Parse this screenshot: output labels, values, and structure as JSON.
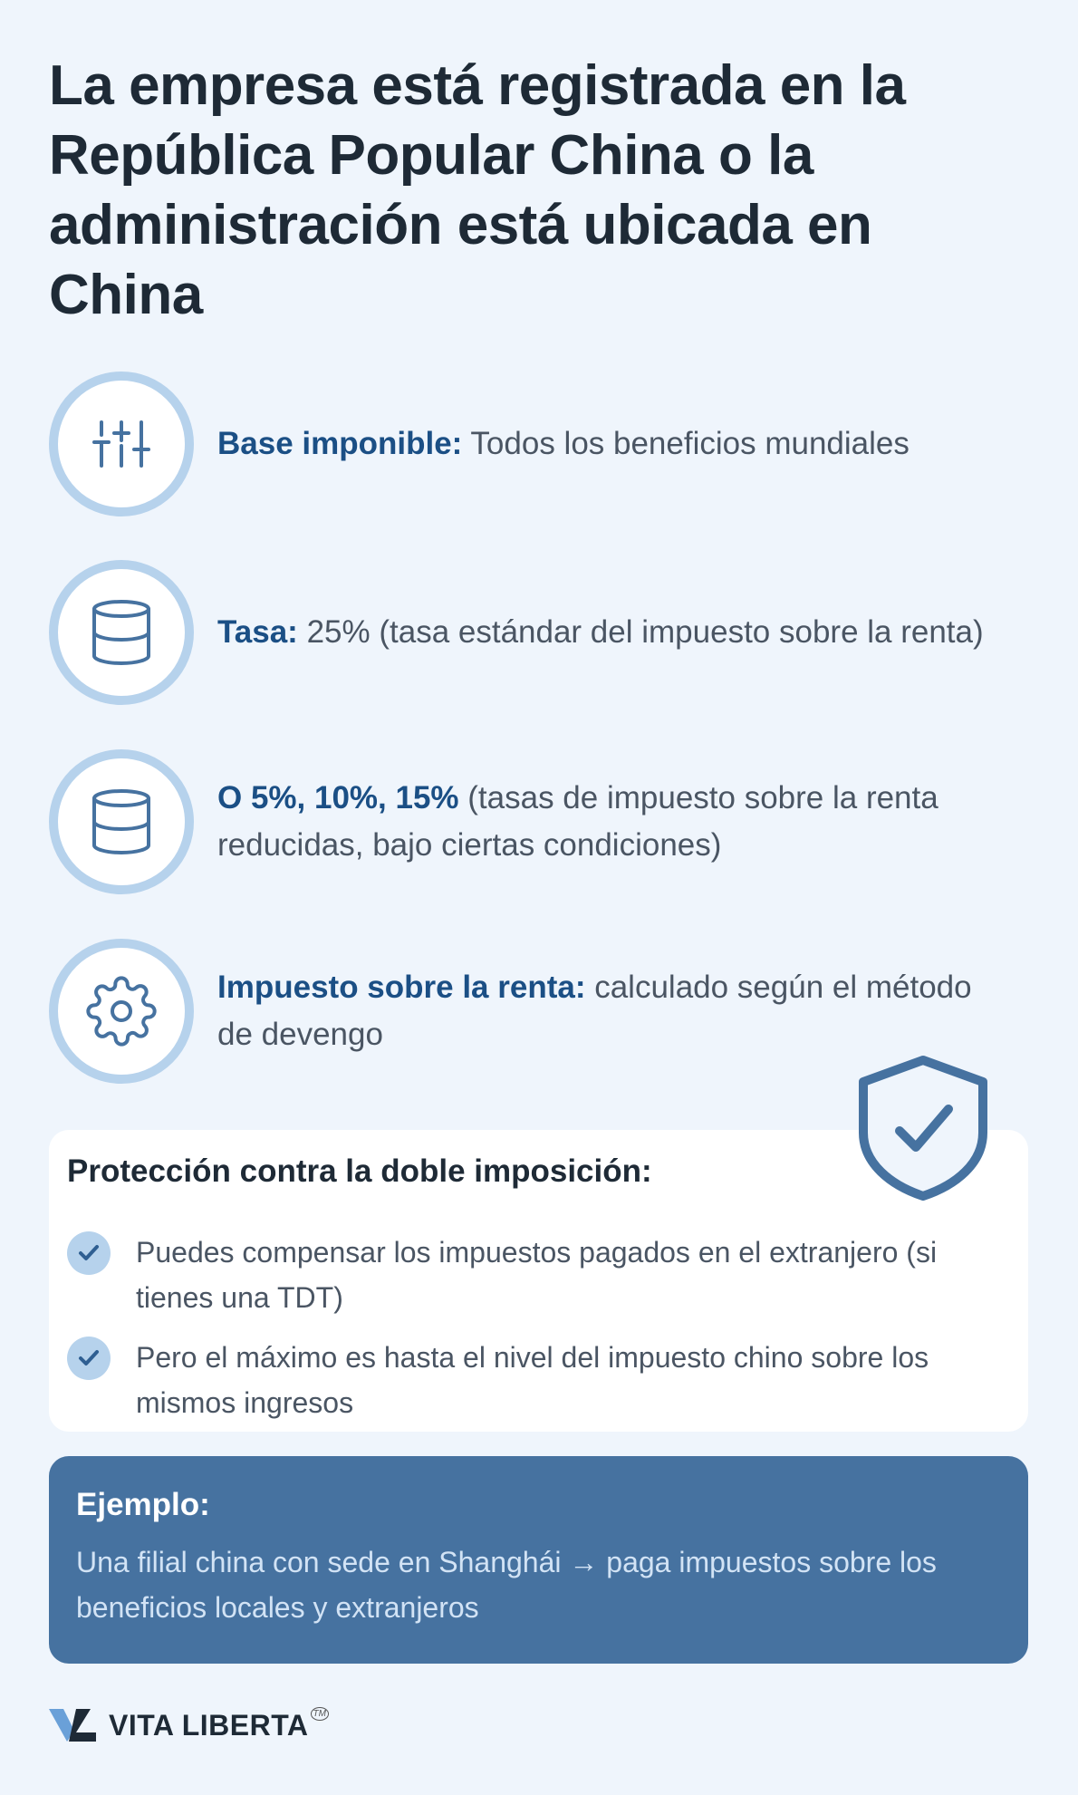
{
  "title": "La empresa está registrada en la República Popular China o la administración está ubicada en China",
  "items": [
    {
      "icon": "sliders-icon",
      "label": "Base imponible:",
      "text": " Todos los beneficios mundiales"
    },
    {
      "icon": "database-icon",
      "label": "Tasa:",
      "text": " 25% (tasa estándar del impuesto sobre la renta)"
    },
    {
      "icon": "database-icon",
      "label": "O 5%, 10%, 15%",
      "text": " (tasas de impuesto sobre la renta reducidas, bajo ciertas condiciones)"
    },
    {
      "icon": "gear-icon",
      "label": "Impuesto sobre la renta:",
      "text": " calculado según el método de devengo"
    }
  ],
  "protection": {
    "heading": "Protección contra la doble imposición:",
    "bullets": [
      "Puedes compensar los impuestos pagados en el extranjero (si tienes una TDT)",
      "Pero el máximo es hasta el nivel del impuesto chino sobre los mismos ingresos"
    ]
  },
  "example": {
    "heading": "Ejemplo:",
    "text": "Una filial china con sede en Shanghái → paga impuestos sobre los beneficios locales y extranjeros"
  },
  "logo": {
    "text": "VITA LIBERTA",
    "tm": "TM"
  },
  "colors": {
    "background": "#eff5fc",
    "accent": "#1b4f85",
    "example_bg": "#4672a0",
    "icon_ring": "#b6d2ec"
  }
}
